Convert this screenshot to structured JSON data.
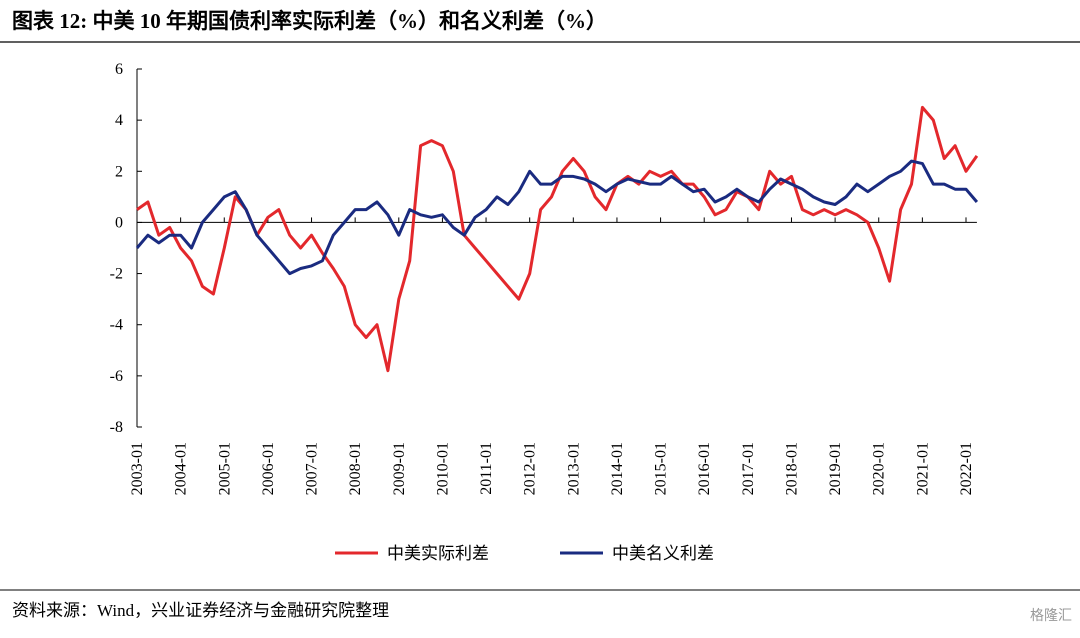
{
  "chart_data": {
    "type": "line",
    "title": "图表 12:  中美 10 年期国债利率实际利差（%）和名义利差（%）",
    "source": "资料来源：Wind，兴业证券经济与金融研究院整理",
    "watermark": "格隆汇",
    "x": [
      "2003-01",
      "2003-04",
      "2003-07",
      "2003-10",
      "2004-01",
      "2004-04",
      "2004-07",
      "2004-10",
      "2005-01",
      "2005-04",
      "2005-07",
      "2005-10",
      "2006-01",
      "2006-04",
      "2006-07",
      "2006-10",
      "2007-01",
      "2007-04",
      "2007-07",
      "2007-10",
      "2008-01",
      "2008-04",
      "2008-07",
      "2008-10",
      "2009-01",
      "2009-04",
      "2009-07",
      "2009-10",
      "2010-01",
      "2010-04",
      "2010-07",
      "2010-10",
      "2011-01",
      "2011-04",
      "2011-07",
      "2011-10",
      "2012-01",
      "2012-04",
      "2012-07",
      "2012-10",
      "2013-01",
      "2013-04",
      "2013-07",
      "2013-10",
      "2014-01",
      "2014-04",
      "2014-07",
      "2014-10",
      "2015-01",
      "2015-04",
      "2015-07",
      "2015-10",
      "2016-01",
      "2016-04",
      "2016-07",
      "2016-10",
      "2017-01",
      "2017-04",
      "2017-07",
      "2017-10",
      "2018-01",
      "2018-04",
      "2018-07",
      "2018-10",
      "2019-01",
      "2019-04",
      "2019-07",
      "2019-10",
      "2020-01",
      "2020-04",
      "2020-07",
      "2020-10",
      "2021-01",
      "2021-04",
      "2021-07",
      "2021-10",
      "2022-01",
      "2022-04"
    ],
    "series": [
      {
        "name": "中美实际利差",
        "color": "#e3282c",
        "values": [
          0.5,
          0.8,
          -0.5,
          -0.2,
          -1.0,
          -1.5,
          -2.5,
          -2.8,
          -1.0,
          1.0,
          0.5,
          -0.5,
          0.2,
          0.5,
          -0.5,
          -1.0,
          -0.5,
          -1.2,
          -1.8,
          -2.5,
          -4.0,
          -4.5,
          -4.0,
          -5.8,
          -3.0,
          -1.5,
          3.0,
          3.2,
          3.0,
          2.0,
          -0.5,
          -1.0,
          -1.5,
          -2.0,
          -2.5,
          -3.0,
          -2.0,
          0.5,
          1.0,
          2.0,
          2.5,
          2.0,
          1.0,
          0.5,
          1.5,
          1.8,
          1.5,
          2.0,
          1.8,
          2.0,
          1.5,
          1.5,
          1.0,
          0.3,
          0.5,
          1.2,
          1.0,
          0.5,
          2.0,
          1.5,
          1.8,
          0.5,
          0.3,
          0.5,
          0.3,
          0.5,
          0.3,
          0.0,
          -1.0,
          -2.3,
          0.5,
          1.5,
          4.5,
          4.0,
          2.5,
          3.0,
          2.0,
          2.6
        ]
      },
      {
        "name": "中美名义利差",
        "color": "#1a2b80",
        "values": [
          -1.0,
          -0.5,
          -0.8,
          -0.5,
          -0.5,
          -1.0,
          0.0,
          0.5,
          1.0,
          1.2,
          0.5,
          -0.5,
          -1.0,
          -1.5,
          -2.0,
          -1.8,
          -1.7,
          -1.5,
          -0.5,
          0.0,
          0.5,
          0.5,
          0.8,
          0.3,
          -0.5,
          0.5,
          0.3,
          0.2,
          0.3,
          -0.2,
          -0.5,
          0.2,
          0.5,
          1.0,
          0.7,
          1.2,
          2.0,
          1.5,
          1.5,
          1.8,
          1.8,
          1.7,
          1.5,
          1.2,
          1.5,
          1.7,
          1.6,
          1.5,
          1.5,
          1.8,
          1.5,
          1.2,
          1.3,
          0.8,
          1.0,
          1.3,
          1.0,
          0.8,
          1.3,
          1.7,
          1.5,
          1.3,
          1.0,
          0.8,
          0.7,
          1.0,
          1.5,
          1.2,
          1.5,
          1.8,
          2.0,
          2.4,
          2.3,
          1.5,
          1.5,
          1.3,
          1.3,
          0.8
        ]
      }
    ],
    "xticks": [
      "2003-01",
      "2004-01",
      "2005-01",
      "2006-01",
      "2007-01",
      "2008-01",
      "2009-01",
      "2010-01",
      "2011-01",
      "2012-01",
      "2013-01",
      "2014-01",
      "2015-01",
      "2016-01",
      "2017-01",
      "2018-01",
      "2019-01",
      "2020-01",
      "2021-01",
      "2022-01"
    ],
    "ylim": [
      -8,
      6
    ],
    "yticks": [
      -8,
      -6,
      -4,
      -2,
      0,
      2,
      4,
      6
    ],
    "grid": false,
    "legend": "bottom"
  }
}
